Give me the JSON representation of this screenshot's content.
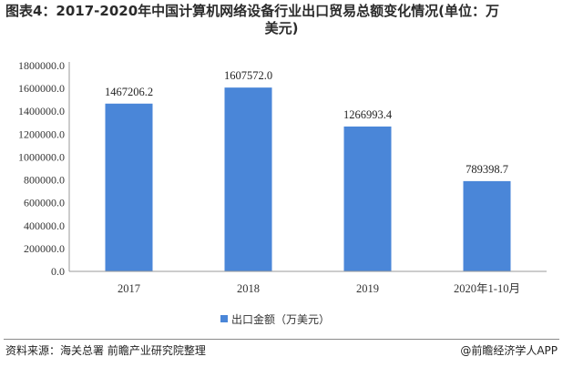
{
  "title_line1": "图表4：2017-2020年中国计算机网络设备行业出口贸易总额变化情况(单位：万",
  "title_line2": "美元)",
  "chart_data": {
    "type": "bar",
    "title": "图表4：2017-2020年中国计算机网络设备行业出口贸易总额变化情况(单位：万美元)",
    "categories": [
      "2017",
      "2018",
      "2019",
      "2020年1-10月"
    ],
    "series": [
      {
        "name": "出口金额（万美元）",
        "values": [
          1467206.2,
          1607572.0,
          1266993.4,
          789398.7
        ]
      }
    ],
    "value_labels": [
      "1467206.2",
      "1607572.0",
      "1266993.4",
      "789398.7"
    ],
    "ylim": [
      0,
      1800000
    ],
    "yticks": [
      0,
      200000,
      400000,
      600000,
      800000,
      1000000,
      1200000,
      1400000,
      1600000,
      1800000
    ],
    "ytick_labels": [
      "0.0",
      "200000.0",
      "400000.0",
      "600000.0",
      "800000.0",
      "1000000.0",
      "1200000.0",
      "1400000.0",
      "1600000.0",
      "1800000.0"
    ],
    "grid": false,
    "legend_position": "bottom",
    "bar_color": "#4a86d8"
  },
  "footer": {
    "source": "资料来源：海关总署 前瞻产业研究院整理",
    "brand_symbol": "@",
    "brand": "前瞻经济学人APP"
  }
}
